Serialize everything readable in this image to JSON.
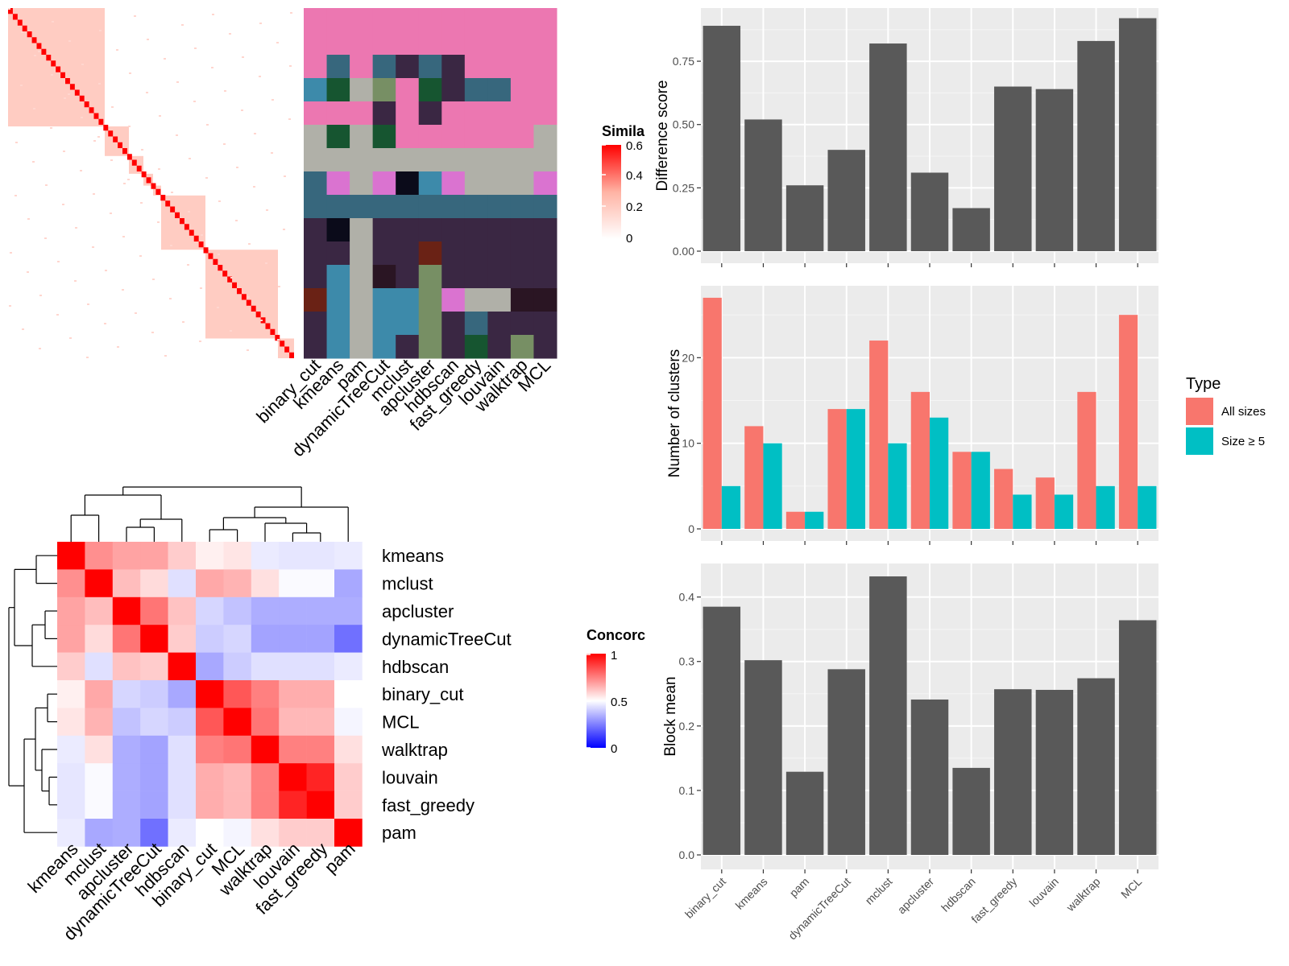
{
  "chart_data": [
    {
      "type": "heatmap",
      "name": "similarity-matrix",
      "legend_title": "Simila",
      "legend_ticks": [
        "0.6",
        "0.4",
        "0.2",
        "0"
      ],
      "color_low": "#ffffff",
      "color_high": "#ff0000"
    },
    {
      "type": "heatmap",
      "name": "cluster-membership",
      "columns": [
        "binary_cut",
        "kmeans",
        "pam",
        "dynamicTreeCut",
        "mclust",
        "apcluster",
        "hdbscan",
        "fast_greedy",
        "louvain",
        "walktrap",
        "MCL"
      ],
      "palette": [
        "#ec77b1",
        "#b0b0a8",
        "#37677d",
        "#3a2743",
        "#3d8aaa",
        "#778f64",
        "#165530",
        "#da73d0",
        "#0b0b1a",
        "#6a2215",
        "#2a1523"
      ]
    },
    {
      "type": "heatmap",
      "name": "concordance",
      "legend_title": "Concorc",
      "legend_ticks": [
        "1",
        "0.5",
        "0"
      ],
      "rows": [
        "kmeans",
        "mclust",
        "apcluster",
        "dynamicTreeCut",
        "hdbscan",
        "binary_cut",
        "MCL",
        "walktrap",
        "louvain",
        "fast_greedy",
        "pam"
      ],
      "columns": [
        "kmeans",
        "mclust",
        "apcluster",
        "dynamicTreeCut",
        "hdbscan",
        "binary_cut",
        "MCL",
        "walktrap",
        "louvain",
        "fast_greedy",
        "pam"
      ],
      "values": [
        [
          1.0,
          0.72,
          0.68,
          0.68,
          0.6,
          0.53,
          0.55,
          0.46,
          0.45,
          0.45,
          0.46
        ],
        [
          0.72,
          1.0,
          0.63,
          0.57,
          0.44,
          0.67,
          0.65,
          0.56,
          0.49,
          0.49,
          0.33
        ],
        [
          0.68,
          0.63,
          1.0,
          0.77,
          0.62,
          0.42,
          0.38,
          0.34,
          0.34,
          0.34,
          0.34
        ],
        [
          0.68,
          0.57,
          0.77,
          1.0,
          0.6,
          0.4,
          0.42,
          0.32,
          0.32,
          0.32,
          0.22
        ],
        [
          0.6,
          0.44,
          0.62,
          0.6,
          1.0,
          0.33,
          0.4,
          0.44,
          0.44,
          0.44,
          0.46
        ],
        [
          0.53,
          0.67,
          0.42,
          0.4,
          0.33,
          1.0,
          0.83,
          0.75,
          0.66,
          0.66,
          0.5
        ],
        [
          0.55,
          0.65,
          0.38,
          0.42,
          0.4,
          0.83,
          1.0,
          0.77,
          0.64,
          0.64,
          0.48
        ],
        [
          0.46,
          0.56,
          0.34,
          0.32,
          0.44,
          0.75,
          0.77,
          1.0,
          0.75,
          0.75,
          0.56
        ],
        [
          0.45,
          0.49,
          0.34,
          0.32,
          0.44,
          0.66,
          0.64,
          0.75,
          1.0,
          0.93,
          0.6
        ],
        [
          0.45,
          0.49,
          0.34,
          0.32,
          0.44,
          0.66,
          0.64,
          0.75,
          0.93,
          1.0,
          0.6
        ],
        [
          0.46,
          0.33,
          0.34,
          0.22,
          0.46,
          0.5,
          0.48,
          0.56,
          0.6,
          0.6,
          1.0
        ]
      ]
    },
    {
      "type": "bar",
      "name": "difference-score",
      "categories": [
        "binary_cut",
        "kmeans",
        "pam",
        "dynamicTreeCut",
        "mclust",
        "apcluster",
        "hdbscan",
        "fast_greedy",
        "louvain",
        "walktrap",
        "MCL"
      ],
      "values": [
        0.89,
        0.52,
        0.26,
        0.4,
        0.82,
        0.31,
        0.17,
        0.65,
        0.64,
        0.83,
        0.92
      ],
      "ylabel": "Difference score",
      "ylim": [
        0,
        0.96
      ],
      "yticks": [
        "0.00",
        "0.25",
        "0.50",
        "0.75"
      ],
      "bar_color": "#595959",
      "grid": true
    },
    {
      "type": "bar",
      "name": "number-of-clusters",
      "categories": [
        "binary_cut",
        "kmeans",
        "pam",
        "dynamicTreeCut",
        "mclust",
        "apcluster",
        "hdbscan",
        "fast_greedy",
        "louvain",
        "walktrap",
        "MCL"
      ],
      "series": [
        {
          "name": "All sizes",
          "values": [
            27,
            12,
            2,
            14,
            22,
            16,
            9,
            7,
            6,
            16,
            25
          ],
          "color": "#f8766d"
        },
        {
          "name": "Size ≥ 5",
          "values": [
            5,
            10,
            2,
            14,
            10,
            13,
            9,
            4,
            4,
            5,
            5
          ],
          "color": "#00bfc4"
        }
      ],
      "ylabel": "Number of clusters",
      "ylim": [
        0,
        28.4
      ],
      "yticks": [
        "0",
        "10",
        "20"
      ],
      "legend_title": "Type",
      "legend_position": "right",
      "grid": true
    },
    {
      "type": "bar",
      "name": "block-mean",
      "categories": [
        "binary_cut",
        "kmeans",
        "pam",
        "dynamicTreeCut",
        "mclust",
        "apcluster",
        "hdbscan",
        "fast_greedy",
        "louvain",
        "walktrap",
        "MCL"
      ],
      "values": [
        0.385,
        0.302,
        0.129,
        0.288,
        0.432,
        0.241,
        0.135,
        0.257,
        0.256,
        0.274,
        0.364
      ],
      "ylabel": "Block mean",
      "ylim": [
        0,
        0.452
      ],
      "yticks": [
        "0.0",
        "0.1",
        "0.2",
        "0.3",
        "0.4"
      ],
      "bar_color": "#595959",
      "grid": true
    }
  ]
}
